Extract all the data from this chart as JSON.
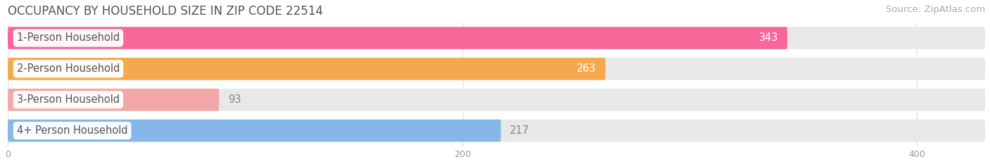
{
  "title": "OCCUPANCY BY HOUSEHOLD SIZE IN ZIP CODE 22514",
  "source": "Source: ZipAtlas.com",
  "categories": [
    "1-Person Household",
    "2-Person Household",
    "3-Person Household",
    "4+ Person Household"
  ],
  "values": [
    343,
    263,
    93,
    217
  ],
  "bar_colors": [
    "#F8679A",
    "#F5A94E",
    "#F2A8A8",
    "#85B8E8"
  ],
  "value_label_colors": [
    "#ffffff",
    "#ffffff",
    "#888888",
    "#888888"
  ],
  "value_label_inside": [
    true,
    true,
    false,
    false
  ],
  "background_color": "#ffffff",
  "bar_bg_color": "#e8e8e8",
  "xlim_max": 430,
  "xticks": [
    0,
    200,
    400
  ],
  "bar_height": 0.72,
  "title_fontsize": 12,
  "label_fontsize": 10.5,
  "value_fontsize": 10.5,
  "source_fontsize": 9.5,
  "tick_fontsize": 9
}
